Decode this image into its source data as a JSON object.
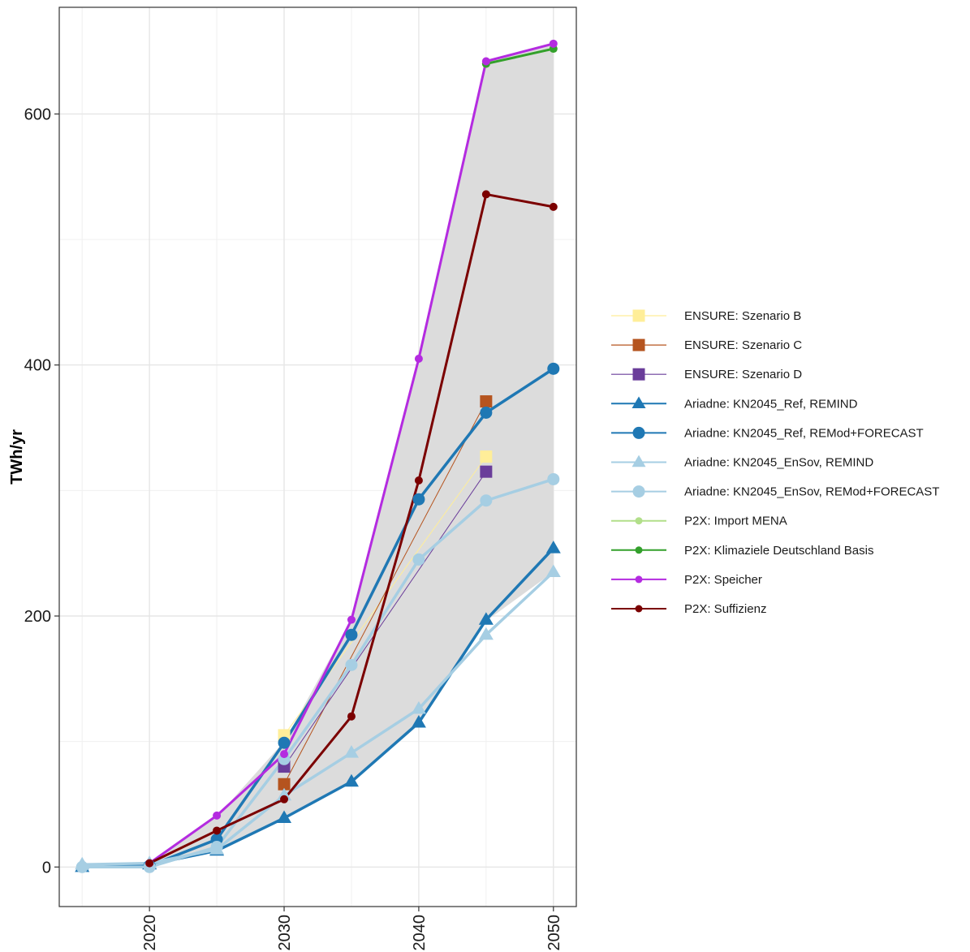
{
  "chart_data": {
    "type": "line",
    "title": "",
    "xlabel": "",
    "ylabel": "TWh/yr",
    "xlim": [
      2013.3,
      2051.7
    ],
    "ylim": [
      -31.5,
      685
    ],
    "x_ticks": [
      2020,
      2030,
      2040,
      2050
    ],
    "y_ticks": [
      0,
      200,
      400,
      600
    ],
    "grid": true,
    "legend_position": "right",
    "range_band": {
      "color": "#dcdcdc",
      "x": [
        2015,
        2020,
        2025,
        2030,
        2035,
        2040,
        2045,
        2050
      ],
      "lower": [
        0,
        0,
        13,
        38,
        68,
        115,
        196,
        235
      ],
      "upper": [
        0,
        3,
        40,
        100,
        197,
        405,
        642,
        656
      ]
    },
    "series": [
      {
        "name": "ENSURE: Szenario B",
        "color": "#ffee99",
        "marker": "square",
        "line_width": 1,
        "x": [
          2030,
          2045
        ],
        "y": [
          105,
          327
        ]
      },
      {
        "name": "ENSURE: Szenario C",
        "color": "#b5541f",
        "marker": "square",
        "line_width": 1,
        "x": [
          2030,
          2045
        ],
        "y": [
          66,
          371
        ]
      },
      {
        "name": "ENSURE: Szenario D",
        "color": "#6a3d9a",
        "marker": "square",
        "line_width": 1,
        "x": [
          2030,
          2045
        ],
        "y": [
          80,
          315
        ]
      },
      {
        "name": "Ariadne: KN2045_Ref, REMIND",
        "color": "#1f78b4",
        "marker": "triangle",
        "line_width": 3.5,
        "x": [
          2015,
          2020,
          2025,
          2030,
          2035,
          2040,
          2045,
          2050
        ],
        "y": [
          0,
          2,
          13,
          39,
          68,
          115,
          197,
          254
        ]
      },
      {
        "name": "Ariadne: KN2045_Ref, REMod+FORECAST",
        "color": "#1f78b4",
        "marker": "circle",
        "line_width": 3.5,
        "x": [
          2020,
          2025,
          2030,
          2035,
          2040,
          2045,
          2050
        ],
        "y": [
          1,
          22,
          99,
          185,
          293,
          362,
          397
        ]
      },
      {
        "name": "Ariadne: KN2045_EnSov, REMIND",
        "color": "#a6cee3",
        "marker": "triangle",
        "line_width": 3.5,
        "x": [
          2015,
          2020,
          2025,
          2030,
          2035,
          2040,
          2045,
          2050
        ],
        "y": [
          2,
          3,
          14,
          57,
          91,
          126,
          185,
          235
        ]
      },
      {
        "name": "Ariadne: KN2045_EnSov, REMod+FORECAST",
        "color": "#a6cee3",
        "marker": "circle",
        "line_width": 3.5,
        "x": [
          2015,
          2020,
          2025,
          2030,
          2035,
          2040,
          2045,
          2050
        ],
        "y": [
          0,
          0,
          16,
          86,
          161,
          245,
          292,
          309
        ]
      },
      {
        "name": "P2X: Import MENA",
        "color": "#b2df8a",
        "marker": "dot",
        "line_width": 3,
        "x": [
          2045,
          2050
        ],
        "y": [
          640,
          652
        ]
      },
      {
        "name": "P2X: Klimaziele Deutschland Basis",
        "color": "#33a02c",
        "marker": "dot",
        "line_width": 3,
        "x": [
          2045,
          2050
        ],
        "y": [
          640,
          652
        ]
      },
      {
        "name": "P2X: Speicher",
        "color": "#b42be0",
        "marker": "dot",
        "line_width": 3,
        "x": [
          2020,
          2025,
          2030,
          2035,
          2040,
          2045,
          2050
        ],
        "y": [
          3,
          41,
          90,
          197,
          405,
          642,
          656
        ]
      },
      {
        "name": "P2X: Suffizienz",
        "color": "#7b0000",
        "marker": "dot",
        "line_width": 3,
        "x": [
          2020,
          2025,
          2030,
          2035,
          2040,
          2045,
          2050
        ],
        "y": [
          3,
          29,
          54,
          120,
          308,
          536,
          526
        ]
      }
    ]
  }
}
